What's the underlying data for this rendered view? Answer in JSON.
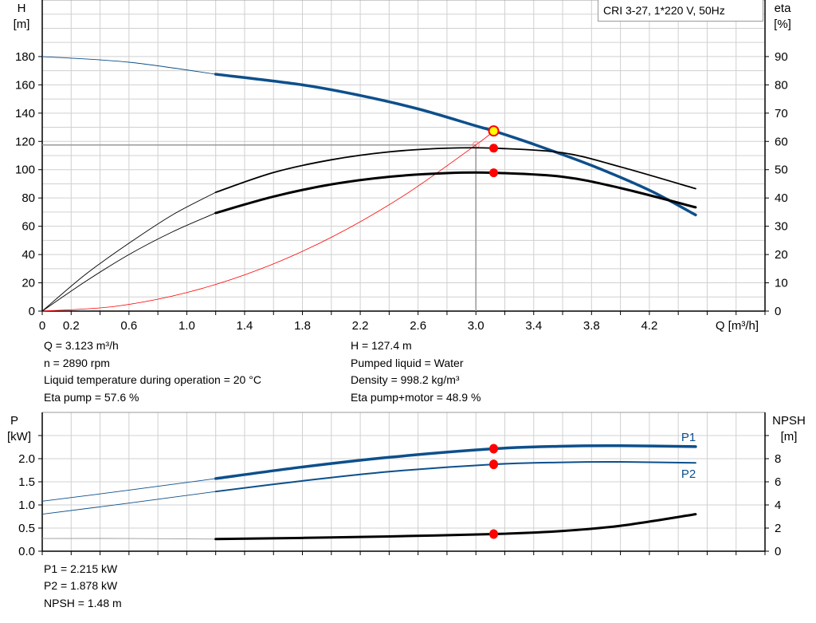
{
  "title": "CRI 3-27, 1*220 V, 50Hz",
  "colors": {
    "head": "#0d4f8b",
    "power": "#0d4f8b",
    "efficiency": "#000000",
    "npsh": "#000000",
    "system": "#ff0000",
    "duty_point": "#ff0000",
    "duty_point_fill": "#ffff00",
    "grid": "#d0d0d0"
  },
  "chart_data": [
    {
      "type": "line",
      "xlabel": "Q [m³/h]",
      "ylabel": "H\n[m]",
      "y2label": "eta\n[%]",
      "xlim": [
        0,
        5.0
      ],
      "ylim": [
        0,
        220
      ],
      "y2lim": [
        0,
        110
      ],
      "x_ticks": [
        "0",
        "0.2",
        "0.6",
        "1.0",
        "1.4",
        "1.8",
        "2.2",
        "2.6",
        "3.0",
        "3.4",
        "3.8",
        "4.2"
      ],
      "y_ticks": [
        0,
        20,
        40,
        60,
        80,
        100,
        120,
        140,
        160,
        180
      ],
      "y2_ticks": [
        0,
        10,
        20,
        30,
        40,
        50,
        60,
        70,
        80,
        90
      ],
      "grid": true,
      "operating_range": [
        1.2,
        4.52
      ],
      "series": [
        {
          "key": "H",
          "axis": "left",
          "points": [
            [
              0,
              180
            ],
            [
              0.6,
              176
            ],
            [
              1.2,
              167.5
            ],
            [
              1.8,
              160
            ],
            [
              2.2,
              152.5
            ],
            [
              2.6,
              143
            ],
            [
              3.0,
              131
            ],
            [
              3.123,
              127.4
            ],
            [
              3.4,
              118
            ],
            [
              3.8,
              103
            ],
            [
              4.2,
              85.5
            ],
            [
              4.52,
              68
            ]
          ]
        },
        {
          "key": "eta_pump",
          "axis": "right",
          "points": [
            [
              0,
              0
            ],
            [
              0.3,
              13
            ],
            [
              0.6,
              24
            ],
            [
              0.9,
              34
            ],
            [
              1.2,
              42
            ],
            [
              1.6,
              49
            ],
            [
              2.0,
              53.5
            ],
            [
              2.4,
              56.3
            ],
            [
              2.8,
              57.6
            ],
            [
              3.123,
              57.6
            ],
            [
              3.6,
              56
            ],
            [
              4.0,
              51
            ],
            [
              4.52,
              43.3
            ]
          ]
        },
        {
          "key": "eta_pump_motor",
          "axis": "right",
          "points": [
            [
              0,
              0
            ],
            [
              0.3,
              10.5
            ],
            [
              0.6,
              20
            ],
            [
              0.9,
              28
            ],
            [
              1.2,
              34.7
            ],
            [
              1.6,
              40.5
            ],
            [
              2.0,
              44.8
            ],
            [
              2.4,
              47.5
            ],
            [
              2.8,
              48.8
            ],
            [
              3.123,
              48.9
            ],
            [
              3.6,
              47.5
            ],
            [
              4.0,
              43.5
            ],
            [
              4.52,
              36.7
            ]
          ]
        }
      ],
      "system_curve": {
        "points": [
          [
            0,
            0
          ],
          [
            0.5,
            3.3
          ],
          [
            1.0,
            13.1
          ],
          [
            1.5,
            29.4
          ],
          [
            2.0,
            52.2
          ],
          [
            2.5,
            81.6
          ],
          [
            3.0,
            117.5
          ],
          [
            3.123,
            127.4
          ]
        ]
      },
      "reference_point": {
        "q": 3.0,
        "h": 117.5
      },
      "duty_points": [
        {
          "key": "H",
          "q": 3.123,
          "v": 127.4
        },
        {
          "key": "eta_pump",
          "q": 3.123,
          "v": 57.6
        },
        {
          "key": "eta_pump_motor",
          "q": 3.123,
          "v": 48.9
        }
      ]
    },
    {
      "type": "line",
      "ylabel": "P\n[kW]",
      "y2label": "NPSH\n[m]",
      "xlim": [
        0,
        5.0
      ],
      "ylim": [
        0,
        3.0
      ],
      "y2lim": [
        0,
        12
      ],
      "y_ticks": [
        "0.0",
        "0.5",
        "1.0",
        "1.5",
        "2.0"
      ],
      "y2_ticks": [
        0,
        2,
        4,
        6,
        8
      ],
      "grid": true,
      "series": [
        {
          "key": "P1",
          "name": "P1",
          "axis": "left",
          "points": [
            [
              0,
              1.08
            ],
            [
              0.6,
              1.32
            ],
            [
              1.2,
              1.57
            ],
            [
              1.8,
              1.82
            ],
            [
              2.4,
              2.03
            ],
            [
              3.123,
              2.215
            ],
            [
              3.6,
              2.27
            ],
            [
              4.0,
              2.28
            ],
            [
              4.52,
              2.26
            ]
          ]
        },
        {
          "key": "P2",
          "name": "P2",
          "axis": "left",
          "points": [
            [
              0,
              0.8
            ],
            [
              0.6,
              1.04
            ],
            [
              1.2,
              1.29
            ],
            [
              1.8,
              1.52
            ],
            [
              2.4,
              1.72
            ],
            [
              3.123,
              1.878
            ],
            [
              3.6,
              1.92
            ],
            [
              4.0,
              1.93
            ],
            [
              4.52,
              1.91
            ]
          ]
        },
        {
          "key": "NPSH",
          "axis": "right",
          "points": [
            [
              0,
              1.1
            ],
            [
              0.6,
              1.1
            ],
            [
              1.2,
              1.05
            ],
            [
              1.8,
              1.15
            ],
            [
              2.4,
              1.28
            ],
            [
              3.123,
              1.48
            ],
            [
              3.6,
              1.75
            ],
            [
              4.0,
              2.2
            ],
            [
              4.52,
              3.2
            ]
          ]
        }
      ],
      "duty_points": [
        {
          "key": "P1",
          "q": 3.123,
          "v": 2.215
        },
        {
          "key": "P2",
          "q": 3.123,
          "v": 1.878
        },
        {
          "key": "NPSH",
          "q": 3.123,
          "v": 1.48
        }
      ]
    }
  ],
  "info_top": {
    "left": [
      "Q = 3.123 m³/h",
      "n = 2890 rpm",
      "Liquid temperature during operation = 20 °C",
      "Eta pump = 57.6 %"
    ],
    "right": [
      "H = 127.4 m",
      "Pumped liquid = Water",
      "Density = 998.2 kg/m³",
      "Eta pump+motor = 48.9 %"
    ]
  },
  "info_bottom": [
    "P1 = 2.215 kW",
    "P2 = 1.878 kW",
    "NPSH = 1.48 m"
  ]
}
